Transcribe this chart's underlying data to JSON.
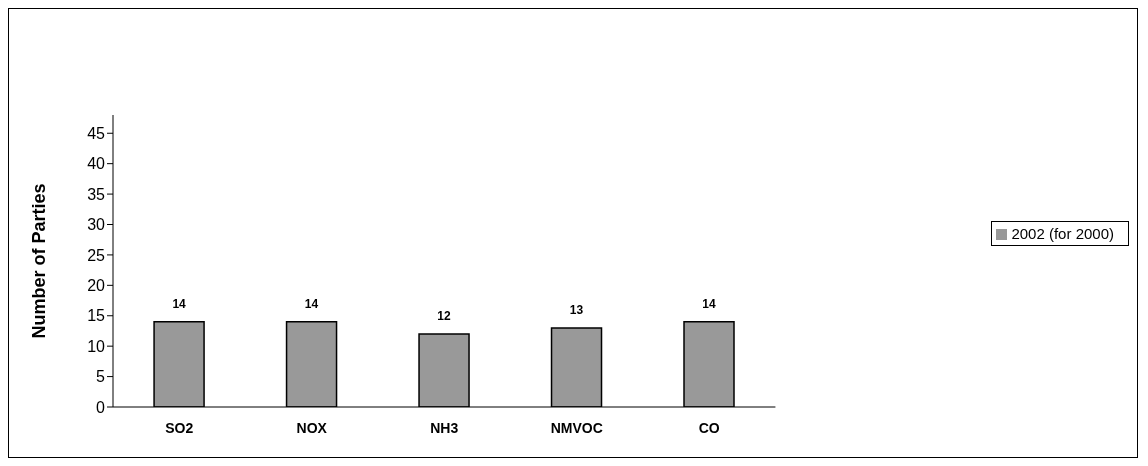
{
  "chart_data": {
    "type": "bar",
    "ylabel": "Number of Parties",
    "categories": [
      "SO2",
      "NOX",
      "NH3",
      "NMVOC",
      "CO"
    ],
    "series": [
      {
        "name": "2002 (for 2000)",
        "color": "#999999",
        "values": [
          14,
          14,
          12,
          13,
          14
        ]
      }
    ],
    "ylim": [
      0,
      48
    ],
    "yticks": [
      0,
      5,
      10,
      15,
      20,
      25,
      30,
      35,
      40,
      45
    ],
    "data_labels": true,
    "legend": "right",
    "grid": false
  }
}
